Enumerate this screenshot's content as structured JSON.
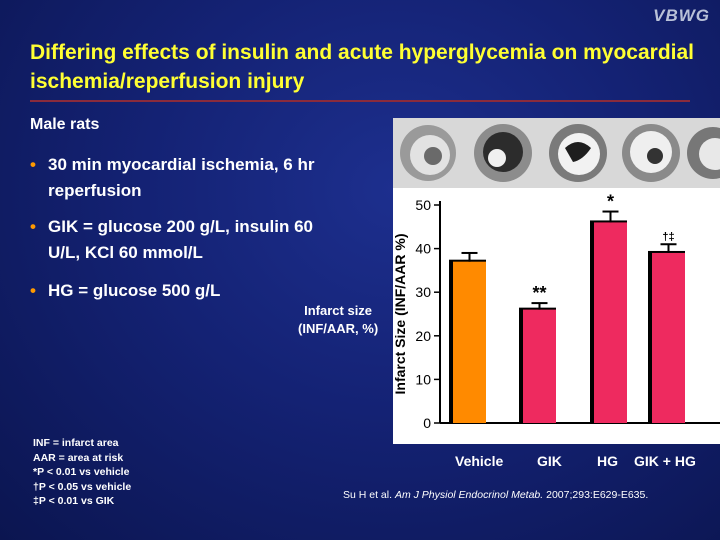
{
  "brand": "VBWG",
  "title": "Differing effects of insulin and acute hyperglycemia on myocardial ischemia/reperfusion injury",
  "subtitle": "Male rats",
  "bullets": [
    "30 min myocardial ischemia, 6 hr reperfusion",
    "GIK = glucose 200 g/L, insulin 60 U/L, KCl 60 mmol/L",
    "HG = glucose 500 g/L"
  ],
  "outer_ylabel": [
    "Infarct size",
    "(INF/AAR, %)"
  ],
  "footnotes": [
    "INF = infarct area",
    "AAR = area at risk",
    "*P < 0.01 vs vehicle",
    "†P < 0.05 vs vehicle",
    "‡P < 0.01 vs GIK"
  ],
  "citation": {
    "authors": "Su H et al.",
    "journal": "Am J Physiol Endocrinol Metab.",
    "rest": "2007;293:E629-E635."
  },
  "colors": {
    "title": "#ffff33",
    "bullet": "#ff9900",
    "vehicle": "#ff8a00",
    "other": "#ee2a5f",
    "background": "#142274",
    "rule": "#8a2b3c"
  },
  "chart_data": {
    "type": "bar",
    "ylabel": "Infarct Size (INF/AAR %)",
    "ylim": [
      0,
      50
    ],
    "yticks": [
      0,
      10,
      20,
      30,
      40,
      50
    ],
    "categories": [
      "Vehicle",
      "GIK",
      "HG",
      "GIK + HG"
    ],
    "values": [
      37,
      26,
      46,
      39
    ],
    "errors": [
      2,
      1.5,
      2.5,
      2
    ],
    "annotations": [
      "",
      "**",
      "*",
      "†‡"
    ]
  }
}
